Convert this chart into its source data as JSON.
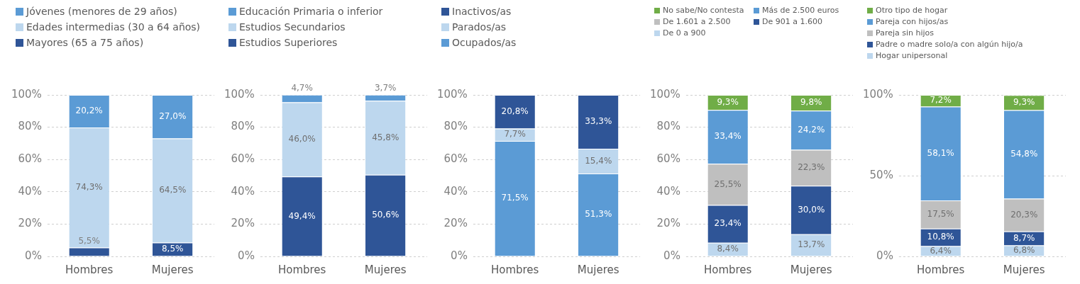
{
  "chart_data": [
    {
      "type": "bar",
      "stacked": true,
      "categories": [
        "Hombres",
        "Mujeres"
      ],
      "ylim": [
        0,
        100
      ],
      "yticks": [
        {
          "value": 0,
          "label": "0%"
        },
        {
          "value": 20,
          "label": "20%"
        },
        {
          "value": 40,
          "label": "40%"
        },
        {
          "value": 60,
          "label": "60%"
        },
        {
          "value": 80,
          "label": "80%"
        },
        {
          "value": 100,
          "label": "100%"
        }
      ],
      "grid": "y",
      "legend": "top",
      "series": [
        {
          "name": "Mayores (65 a 75 años)",
          "color": "#2f5597",
          "values": [
            5.5,
            8.5
          ],
          "value_labels": [
            "5,5%",
            "8,5%"
          ]
        },
        {
          "name": "Edades intermedias (30 a 64 años)",
          "color": "#bdd7ee",
          "values": [
            74.3,
            64.5
          ],
          "value_labels": [
            "74,3%",
            "64,5%"
          ]
        },
        {
          "name": "Jóvenes (menores de 29 años)",
          "color": "#5b9bd5",
          "values": [
            20.2,
            27.0
          ],
          "value_labels": [
            "20,2%",
            "27,0%"
          ]
        }
      ]
    },
    {
      "type": "bar",
      "stacked": true,
      "categories": [
        "Hombres",
        "Mujeres"
      ],
      "ylim": [
        0,
        100
      ],
      "yticks": [
        {
          "value": 0,
          "label": "0%"
        },
        {
          "value": 20,
          "label": "20%"
        },
        {
          "value": 40,
          "label": "40%"
        },
        {
          "value": 60,
          "label": "60%"
        },
        {
          "value": 80,
          "label": "80%"
        },
        {
          "value": 100,
          "label": "100%"
        }
      ],
      "grid": "y",
      "legend": "top",
      "series": [
        {
          "name": "Estudios Superiores",
          "color": "#2f5597",
          "values": [
            49.4,
            50.6
          ],
          "value_labels": [
            "49,4%",
            "50,6%"
          ]
        },
        {
          "name": "Estudios Secundarios",
          "color": "#bdd7ee",
          "values": [
            46.0,
            45.8
          ],
          "value_labels": [
            "46,0%",
            "45,8%"
          ]
        },
        {
          "name": "Educación Primaria o inferior",
          "color": "#5b9bd5",
          "values": [
            4.7,
            3.7
          ],
          "value_labels": [
            "4,7%",
            "3,7%"
          ]
        }
      ]
    },
    {
      "type": "bar",
      "stacked": true,
      "categories": [
        "Hombres",
        "Mujeres"
      ],
      "ylim": [
        0,
        100
      ],
      "yticks": [
        {
          "value": 0,
          "label": "0%"
        },
        {
          "value": 20,
          "label": "20%"
        },
        {
          "value": 40,
          "label": "40%"
        },
        {
          "value": 60,
          "label": "60%"
        },
        {
          "value": 80,
          "label": "80%"
        },
        {
          "value": 100,
          "label": "100%"
        }
      ],
      "grid": "y",
      "legend": "top",
      "series": [
        {
          "name": "Ocupados/as",
          "color": "#5b9bd5",
          "values": [
            71.5,
            51.3
          ],
          "value_labels": [
            "71,5%",
            "51,3%"
          ]
        },
        {
          "name": "Parados/as",
          "color": "#bdd7ee",
          "values": [
            7.7,
            15.4
          ],
          "value_labels": [
            "7,7%",
            "15,4%"
          ]
        },
        {
          "name": "Inactivos/as",
          "color": "#2f5597",
          "values": [
            20.8,
            33.3
          ],
          "value_labels": [
            "20,8%",
            "33,3%"
          ]
        }
      ]
    },
    {
      "type": "bar",
      "stacked": true,
      "categories": [
        "Hombres",
        "Mujeres"
      ],
      "ylim": [
        0,
        100
      ],
      "yticks": [
        {
          "value": 0,
          "label": "0%"
        },
        {
          "value": 20,
          "label": "20%"
        },
        {
          "value": 40,
          "label": "40%"
        },
        {
          "value": 60,
          "label": "60%"
        },
        {
          "value": 80,
          "label": "80%"
        },
        {
          "value": 100,
          "label": "100%"
        }
      ],
      "grid": "y",
      "legend": "top",
      "series": [
        {
          "name": "De 0 a 900",
          "color": "#bdd7ee",
          "values": [
            8.4,
            13.7
          ],
          "value_labels": [
            "8,4%",
            "13,7%"
          ]
        },
        {
          "name": "De 901 a 1.600",
          "color": "#2f5597",
          "values": [
            23.4,
            30.0
          ],
          "value_labels": [
            "23,4%",
            "30,0%"
          ]
        },
        {
          "name": "De 1.601 a 2.500",
          "color": "#bfbfbf",
          "values": [
            25.5,
            22.3
          ],
          "value_labels": [
            "25,5%",
            "22,3%"
          ]
        },
        {
          "name": "Más de 2.500 euros",
          "color": "#5b9bd5",
          "values": [
            33.4,
            24.2
          ],
          "value_labels": [
            "33,4%",
            "24,2%"
          ]
        },
        {
          "name": "No sabe/No contesta",
          "color": "#70ad47",
          "values": [
            9.3,
            9.8
          ],
          "value_labels": [
            "9,3%",
            "9,8%"
          ]
        }
      ]
    },
    {
      "type": "bar",
      "stacked": true,
      "categories": [
        "Hombres",
        "Mujeres"
      ],
      "ylim": [
        0,
        100
      ],
      "yticks": [
        {
          "value": 0,
          "label": "0%"
        },
        {
          "value": 50,
          "label": "50%"
        },
        {
          "value": 100,
          "label": "100%"
        }
      ],
      "grid": "y",
      "legend": "top",
      "series": [
        {
          "name": "Hogar unipersonal",
          "color": "#bdd7ee",
          "values": [
            6.4,
            6.8
          ],
          "value_labels": [
            "6,4%",
            "6,8%"
          ]
        },
        {
          "name": "Padre o madre solo/a con algún hijo/a",
          "color": "#2f5597",
          "values": [
            10.8,
            8.7
          ],
          "value_labels": [
            "10,8%",
            "8,7%"
          ]
        },
        {
          "name": "Pareja sin hijos",
          "color": "#bfbfbf",
          "values": [
            17.5,
            20.3
          ],
          "value_labels": [
            "17,5%",
            "20,3%"
          ]
        },
        {
          "name": "Pareja con hijos/as",
          "color": "#5b9bd5",
          "values": [
            58.1,
            54.8
          ],
          "value_labels": [
            "58,1%",
            "54,8%"
          ]
        },
        {
          "name": "Otro tipo de hogar",
          "color": "#70ad47",
          "values": [
            7.2,
            9.3
          ],
          "value_labels": [
            "7,2%",
            "9,3%"
          ]
        }
      ]
    }
  ]
}
